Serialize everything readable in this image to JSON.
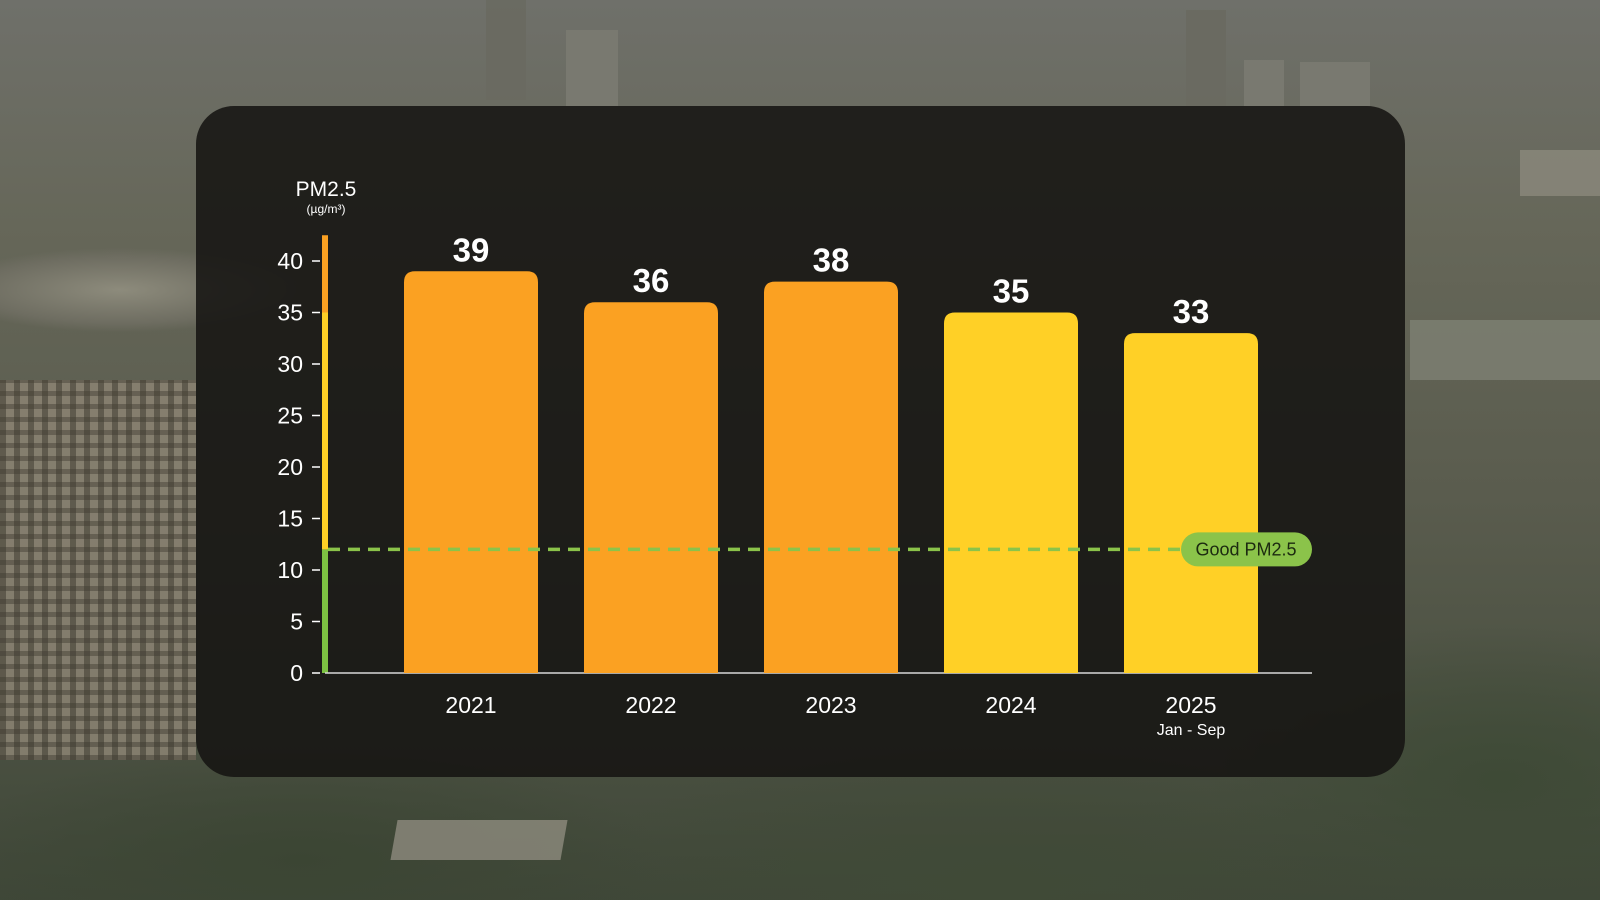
{
  "chart_data": {
    "type": "bar",
    "ylabel": "PM2.5",
    "yunit": "(µg/m³)",
    "ylim": [
      0,
      42.5
    ],
    "yticks": [
      0,
      5,
      10,
      15,
      20,
      25,
      30,
      35,
      40
    ],
    "categories": [
      "2021",
      "2022",
      "2023",
      "2024",
      "2025"
    ],
    "category_subtitles": [
      "",
      "",
      "",
      "",
      "Jan - Sep"
    ],
    "values": [
      39,
      36,
      38,
      35,
      33
    ],
    "value_labels": [
      "39",
      "36",
      "38",
      "35",
      "33"
    ],
    "bar_colors": [
      "#fba122",
      "#fba122",
      "#fba122",
      "#ffd026",
      "#ffd026"
    ],
    "grid": false,
    "reference_line": {
      "value": 12,
      "label": "Good PM2.5",
      "color": "#8bc34a"
    },
    "axis_color_bands": [
      {
        "from": 0,
        "to": 12,
        "color": "#7cc242"
      },
      {
        "from": 12,
        "to": 35,
        "color": "#ffd026"
      },
      {
        "from": 35,
        "to": 42.5,
        "color": "#fba122"
      }
    ]
  }
}
